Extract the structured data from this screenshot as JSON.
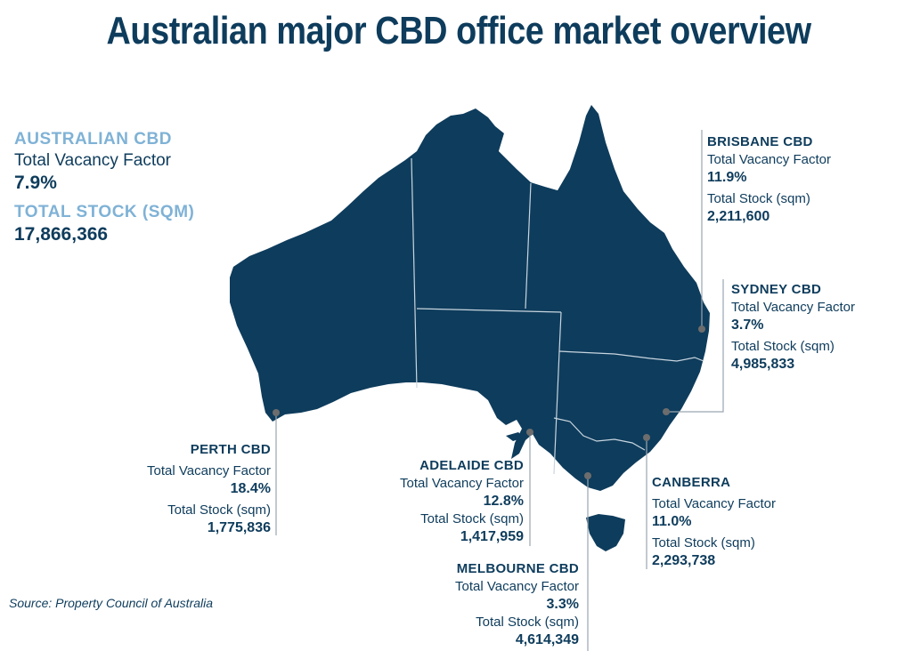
{
  "title": "Australian major CBD office market overview",
  "summary": {
    "heading": "AUSTRALIAN CBD",
    "vacancy_label": "Total Vacancy Factor",
    "vacancy_value": "7.9%",
    "stock_heading": "TOTAL STOCK (SQM)",
    "stock_value": "17,866,366"
  },
  "cities": {
    "brisbane": {
      "name": "BRISBANE CBD",
      "vacancy_label": "Total Vacancy Factor",
      "vacancy": "11.9%",
      "stock_label": "Total Stock (sqm)",
      "stock": "2,211,600"
    },
    "sydney": {
      "name": "SYDNEY CBD",
      "vacancy_label": "Total Vacancy Factor",
      "vacancy": "3.7%",
      "stock_label": "Total Stock (sqm)",
      "stock": "4,985,833"
    },
    "perth": {
      "name": "PERTH CBD",
      "vacancy_label": "Total Vacancy Factor",
      "vacancy": "18.4%",
      "stock_label": "Total Stock (sqm)",
      "stock": "1,775,836"
    },
    "adelaide": {
      "name": "ADELAIDE CBD",
      "vacancy_label": "Total Vacancy Factor",
      "vacancy": "12.8%",
      "stock_label": "Total Stock (sqm)",
      "stock": "1,417,959"
    },
    "canberra": {
      "name": "CANBERRA",
      "vacancy_label": "Total Vacancy Factor",
      "vacancy": "11.0%",
      "stock_label": "Total Stock (sqm)",
      "stock": "2,293,738"
    },
    "melbourne": {
      "name": "MELBOURNE CBD",
      "vacancy_label": "Total Vacancy Factor",
      "vacancy": "3.3%",
      "stock_label": "Total Stock (sqm)",
      "stock": "4,614,349"
    }
  },
  "source": "Source: Property Council of Australia",
  "colors": {
    "map_fill": "#0e3c5c",
    "accent": "#7fb2d6",
    "border": "#c9d6e0",
    "leader": "#9aa6b0",
    "marker": "#6d6d6d"
  }
}
